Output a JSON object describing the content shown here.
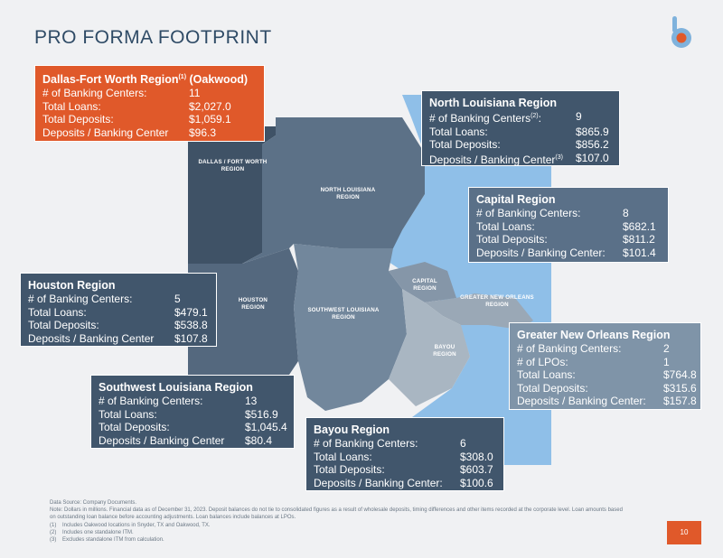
{
  "title": "PRO FORMA FOOTPRINT",
  "colors": {
    "accent": "#e0592a",
    "navy": "#2f4b66",
    "water": "#8fbfe8"
  },
  "map_labels": {
    "dfw": [
      "DALLAS / FORT WORTH",
      "REGION"
    ],
    "north": [
      "NORTH LOUISIANA",
      "REGION"
    ],
    "houston": [
      "HOUSTON",
      "REGION"
    ],
    "southwest": [
      "SOUTHWEST LOUISIANA",
      "REGION"
    ],
    "capital": [
      "CAPITAL",
      "REGION"
    ],
    "gno": [
      "GREATER NEW ORLEANS",
      "REGION"
    ],
    "bayou": [
      "BAYOU",
      "REGION"
    ]
  },
  "regions": {
    "dfw": {
      "title": "Dallas-Fort Worth Region",
      "title_sup": "(1)",
      "title_suffix": " (Oakwood)",
      "rows": [
        {
          "label": "# of Banking Centers:",
          "value": "11"
        },
        {
          "label": "Total Loans:",
          "value": "$2,027.0"
        },
        {
          "label": "Total Deposits:",
          "value": "$1,059.1"
        },
        {
          "label": "Deposits / Banking Center",
          "value": "$96.3"
        }
      ]
    },
    "north": {
      "title": "North Louisiana Region",
      "rows": [
        {
          "label": "# of Banking Centers",
          "sup": "(2)",
          "label_end": ":",
          "value": "9"
        },
        {
          "label": "Total Loans:",
          "value": "$865.9"
        },
        {
          "label": "Total Deposits:",
          "value": "$856.2"
        },
        {
          "label": "Deposits / Banking Center",
          "sup": "(3)",
          "value": "$107.0"
        }
      ]
    },
    "capital": {
      "title": "Capital Region",
      "rows": [
        {
          "label": "# of Banking Centers:",
          "value": "8"
        },
        {
          "label": "Total Loans:",
          "value": "$682.1"
        },
        {
          "label": "Total Deposits:",
          "value": "$811.2"
        },
        {
          "label": "Deposits / Banking Center:",
          "value": "$101.4"
        }
      ]
    },
    "houston": {
      "title": "Houston Region",
      "rows": [
        {
          "label": "# of Banking Centers:",
          "value": "5"
        },
        {
          "label": "Total Loans:",
          "value": "$479.1"
        },
        {
          "label": "Total Deposits:",
          "value": "$538.8"
        },
        {
          "label": "Deposits / Banking Center",
          "value": "$107.8"
        }
      ]
    },
    "gno": {
      "title": "Greater New Orleans Region",
      "rows": [
        {
          "label": "# of Banking Centers:",
          "value": "2"
        },
        {
          "label": "# of LPOs:",
          "value": "1"
        },
        {
          "label": "Total Loans:",
          "value": "$764.8"
        },
        {
          "label": "Total Deposits:",
          "value": "$315.6"
        },
        {
          "label": "Deposits / Banking Center:",
          "value": "$157.8"
        }
      ]
    },
    "southwest": {
      "title": "Southwest Louisiana Region",
      "rows": [
        {
          "label": "# of Banking Centers:",
          "value": "13"
        },
        {
          "label": "Total Loans:",
          "value": "$516.9"
        },
        {
          "label": "Total Deposits:",
          "value": "$1,045.4"
        },
        {
          "label": "Deposits / Banking Center",
          "value": "$80.4"
        }
      ]
    },
    "bayou": {
      "title": "Bayou Region",
      "rows": [
        {
          "label": "# of Banking Centers:",
          "value": "6"
        },
        {
          "label": "Total Loans:",
          "value": "$308.0"
        },
        {
          "label": "Total Deposits:",
          "value": "$603.7"
        },
        {
          "label": "Deposits / Banking Center:",
          "value": "$100.6"
        }
      ]
    }
  },
  "footer": {
    "source": "Data Source: Company Documents.",
    "note": "Note: Dollars in millions. Financial data as of December 31, 2023. Deposit balances do not tie to consolidated figures as a result of wholesale deposits, timing differences and other items recorded at the corporate level. Loan amounts based on outstanding loan balance before accounting adjustments. Loan balances include balances at LPOs.",
    "footnotes": [
      {
        "n": "(1)",
        "text": "Includes Oakwood locations in Snyder, TX and Oakwood, TX."
      },
      {
        "n": "(2)",
        "text": "Includes one standalone ITM."
      },
      {
        "n": "(3)",
        "text": "Excludes standalone ITM from calculation."
      }
    ]
  },
  "page_number": "10"
}
